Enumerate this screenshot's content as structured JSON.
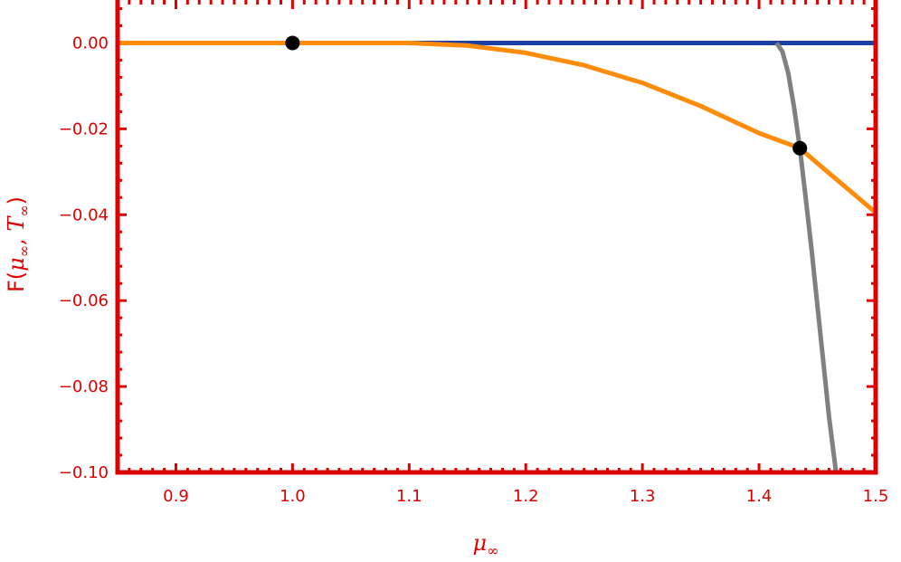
{
  "chart_data": {
    "type": "line",
    "xlim": [
      0.85,
      1.5
    ],
    "ylim": [
      -0.1,
      0.01
    ],
    "x_ticks": [
      0.9,
      1.0,
      1.1,
      1.2,
      1.3,
      1.4,
      1.5
    ],
    "x_tick_labels": [
      "0.9",
      "1.0",
      "1.1",
      "1.2",
      "1.3",
      "1.4",
      "1.5"
    ],
    "y_ticks": [
      0.0,
      -0.02,
      -0.04,
      -0.06,
      -0.08,
      -0.1
    ],
    "y_tick_labels": [
      "0.00",
      "−0.02",
      "−0.04",
      "−0.06",
      "−0.08",
      "−0.10"
    ],
    "xlabel_parts": {
      "base": "μ",
      "sub": "∞"
    },
    "ylabel_parts": {
      "pre": "F(",
      "mu": "μ",
      "sub1": "∞",
      "comma": ", ",
      "t": "T",
      "sub2": "∞",
      "post": ")"
    },
    "grid": false,
    "series": [
      {
        "color": "#1a3fa6",
        "x": [
          0.85,
          1.5
        ],
        "y": [
          0.0,
          0.0
        ]
      },
      {
        "color": "#ff8c0a",
        "x": [
          0.85,
          1.0,
          1.1,
          1.15,
          1.2,
          1.25,
          1.3,
          1.35,
          1.4,
          1.435,
          1.45,
          1.5
        ],
        "y": [
          0.0,
          0.0,
          0.0,
          -0.0006,
          -0.0023,
          -0.0052,
          -0.0093,
          -0.0147,
          -0.021,
          -0.0245,
          -0.028,
          -0.0395
        ]
      },
      {
        "color": "#808080",
        "x": [
          1.415,
          1.42,
          1.425,
          1.43,
          1.435,
          1.44,
          1.445,
          1.45,
          1.455,
          1.46,
          1.466
        ],
        "y": [
          0.0,
          -0.002,
          -0.007,
          -0.015,
          -0.0245,
          -0.036,
          -0.048,
          -0.061,
          -0.074,
          -0.087,
          -0.1
        ]
      }
    ],
    "points": [
      {
        "x": 1.0,
        "y": 0.0
      },
      {
        "x": 1.435,
        "y": -0.0245
      }
    ],
    "colors": {
      "frame": "#dd0000",
      "text": "#dd0000",
      "point": "#000000"
    }
  }
}
